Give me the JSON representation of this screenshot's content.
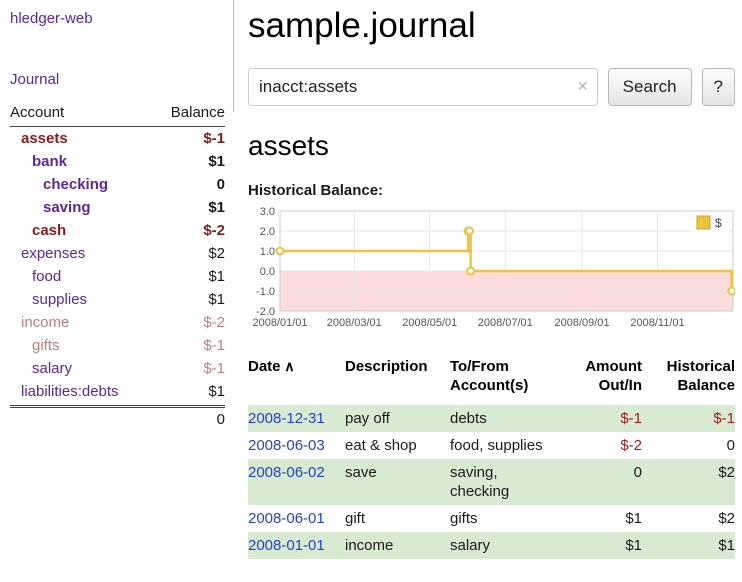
{
  "colors": {
    "purple": "#61259e",
    "darkred": "#8b1a1a",
    "rose": "#c17d7d",
    "link_blue": "#2442cc",
    "neg_red": "#a61b1b",
    "row_shade": "#d9ead3",
    "chart_line": "#edc240",
    "chart_negative_region": "#fcdcdc"
  },
  "sidebar": {
    "app_title": "hledger-web",
    "journal_link": "Journal",
    "account_header": "Account",
    "balance_header": "Balance",
    "accounts": [
      {
        "name": "assets",
        "balance": "$-1",
        "depth": 1,
        "bold": true,
        "name_style": "darkred",
        "balance_style": "darkred"
      },
      {
        "name": "bank",
        "balance": "$1",
        "depth": 2,
        "bold": true,
        "name_style": "purple",
        "balance_style": "black"
      },
      {
        "name": "checking",
        "balance": "0",
        "depth": 3,
        "bold": true,
        "name_style": "purple",
        "balance_style": "black"
      },
      {
        "name": "saving",
        "balance": "$1",
        "depth": 3,
        "bold": true,
        "name_style": "purple",
        "balance_style": "black"
      },
      {
        "name": "cash",
        "balance": "$-2",
        "depth": 2,
        "bold": true,
        "name_style": "darkred",
        "balance_style": "darkred"
      },
      {
        "name": "expenses",
        "balance": "$2",
        "depth": 1,
        "bold": false,
        "name_style": "purple",
        "balance_style": "black"
      },
      {
        "name": "food",
        "balance": "$1",
        "depth": 2,
        "bold": false,
        "name_style": "purple",
        "balance_style": "black"
      },
      {
        "name": "supplies",
        "balance": "$1",
        "depth": 2,
        "bold": false,
        "name_style": "purple",
        "balance_style": "black"
      },
      {
        "name": "income",
        "balance": "$-2",
        "depth": 1,
        "bold": false,
        "name_style": "rose",
        "balance_style": "rose"
      },
      {
        "name": "gifts",
        "balance": "$-1",
        "depth": 2,
        "bold": false,
        "name_style": "rose",
        "balance_style": "rose"
      },
      {
        "name": "salary",
        "balance": "$-1",
        "depth": 2,
        "bold": false,
        "name_style": "purple",
        "balance_style": "rose"
      },
      {
        "name": "liabilities:debts",
        "balance": "$1",
        "depth": 1,
        "bold": false,
        "name_style": "purple",
        "balance_style": "black"
      }
    ],
    "total": "0"
  },
  "main": {
    "title": "sample.journal"
  },
  "search": {
    "value": "inacct:assets",
    "clear_icon": "✕",
    "button_label": "Search",
    "help_label": "?"
  },
  "account_view": {
    "heading": "assets",
    "chart_title": "Historical Balance:"
  },
  "chart_data": {
    "type": "line",
    "step": true,
    "title": "Historical Balance",
    "legend_label": "$",
    "legend_position": "top-right",
    "series": [
      {
        "name": "$",
        "points": [
          [
            "2008-01-01",
            1
          ],
          [
            "2008-06-01",
            2
          ],
          [
            "2008-06-02",
            2
          ],
          [
            "2008-06-03",
            0
          ],
          [
            "2008-12-31",
            -1
          ]
        ]
      }
    ],
    "ylim": [
      -2,
      3
    ],
    "y_ticks": [
      "3.0",
      "2.0",
      "1.0",
      "0.0",
      "-1.0",
      "-2.0"
    ],
    "x_ticks": [
      {
        "date": "2008-01-01",
        "label": "2008/01/01"
      },
      {
        "date": "2008-03-01",
        "label": "2008/03/01"
      },
      {
        "date": "2008-05-01",
        "label": "2008/05/01"
      },
      {
        "date": "2008-07-01",
        "label": "2008/07/01"
      },
      {
        "date": "2008-09-01",
        "label": "2008/09/01"
      },
      {
        "date": "2008-11-01",
        "label": "2008/11/01"
      }
    ],
    "x_start": "2008-01-01",
    "x_span_days": 366,
    "grid": true,
    "negative_region": true
  },
  "register": {
    "columns": [
      {
        "lines": [
          "Date"
        ],
        "sort_indicator": "∧",
        "align": "left"
      },
      {
        "lines": [
          "Description"
        ],
        "align": "left"
      },
      {
        "lines": [
          "To/From",
          "Account(s)"
        ],
        "align": "left"
      },
      {
        "lines": [
          "Amount",
          "Out/In"
        ],
        "align": "right"
      },
      {
        "lines": [
          "Historical",
          "Balance"
        ],
        "align": "right"
      }
    ],
    "rows": [
      {
        "date": "2008-12-31",
        "description": "pay off",
        "accounts": [
          "debts"
        ],
        "amount": "$-1",
        "amount_negative": true,
        "balance": "$-1",
        "balance_negative": true,
        "shaded": true
      },
      {
        "date": "2008-06-03",
        "description": "eat & shop",
        "accounts": [
          "food, supplies"
        ],
        "amount": "$-2",
        "amount_negative": true,
        "balance": "0",
        "balance_negative": false,
        "shaded": false
      },
      {
        "date": "2008-06-02",
        "description": "save",
        "accounts": [
          "saving,",
          "checking"
        ],
        "amount": "0",
        "amount_negative": false,
        "balance": "$2",
        "balance_negative": false,
        "shaded": true
      },
      {
        "date": "2008-06-01",
        "description": "gift",
        "accounts": [
          "gifts"
        ],
        "amount": "$1",
        "amount_negative": false,
        "balance": "$2",
        "balance_negative": false,
        "shaded": false
      },
      {
        "date": "2008-01-01",
        "description": "income",
        "accounts": [
          "salary"
        ],
        "amount": "$1",
        "amount_negative": false,
        "balance": "$1",
        "balance_negative": false,
        "shaded": true
      }
    ]
  }
}
